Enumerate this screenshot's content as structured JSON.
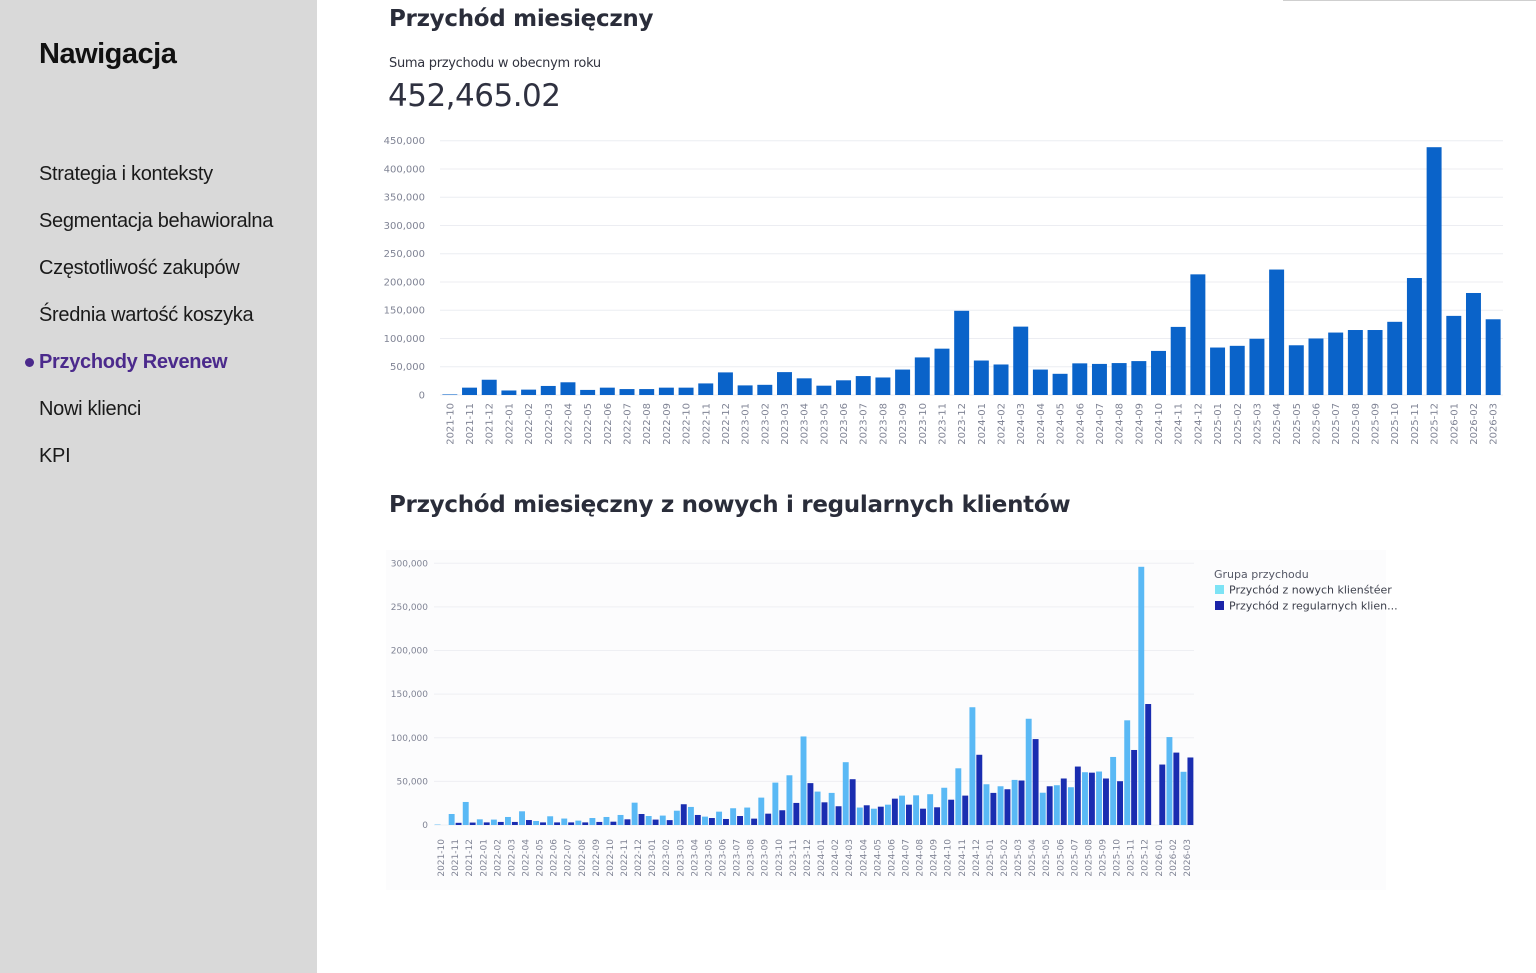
{
  "sidebar": {
    "title": "Nawigacja",
    "items": [
      {
        "label": "Strategia i konteksty",
        "active": false
      },
      {
        "label": "Segmentacja behawioralna",
        "active": false
      },
      {
        "label": "Częstotliwość zakupów",
        "active": false
      },
      {
        "label": "Średnia wartość koszyka",
        "active": false
      },
      {
        "label": "Przychody Revenew",
        "active": true
      },
      {
        "label": "Nowi klienci",
        "active": false
      },
      {
        "label": "KPI",
        "active": false
      }
    ]
  },
  "main": {
    "section1_title": "Przychód miesięczny",
    "metric_label": "Suma przychodu w obecnym roku",
    "metric_value": "452,465.02",
    "section2_title": "Przychód miesięczny z nowych i regularnych klientów"
  },
  "colors": {
    "bar_total": "#0a63c9",
    "new_clients": "#5ab9f5",
    "regular_clients": "#1a2db0",
    "active_nav": "#4b2a8c"
  },
  "chart_data": [
    {
      "type": "bar",
      "title": "Przychód miesięczny",
      "xlabel": "",
      "ylabel": "",
      "ylim": [
        0,
        450000
      ],
      "yticks": [
        0,
        50000,
        100000,
        150000,
        200000,
        250000,
        300000,
        350000,
        400000,
        450000
      ],
      "ytick_labels": [
        "0",
        "50,000",
        "100,000",
        "150,000",
        "200,000",
        "250,000",
        "300,000",
        "350,000",
        "400,000",
        "450,000"
      ],
      "grid": true,
      "categories": [
        "2021-10",
        "2021-11",
        "2021-12",
        "2022-01",
        "2022-02",
        "2022-03",
        "2022-04",
        "2022-05",
        "2022-06",
        "2022-07",
        "2022-08",
        "2022-09",
        "2022-10",
        "2022-11",
        "2022-12",
        "2023-01",
        "2023-02",
        "2023-03",
        "2023-04",
        "2023-05",
        "2023-06",
        "2023-07",
        "2023-08",
        "2023-09",
        "2023-10",
        "2023-11",
        "2023-12",
        "2024-01",
        "2024-02",
        "2024-03",
        "2024-04",
        "2024-05",
        "2024-06",
        "2024-07",
        "2024-08",
        "2024-09",
        "2024-10",
        "2024-11",
        "2024-12",
        "2025-01",
        "2025-02",
        "2025-03",
        "2025-04",
        "2025-05",
        "2025-06",
        "2025-07",
        "2025-08",
        "2025-09",
        "2025-10",
        "2025-11",
        "2025-12",
        "2026-01",
        "2026-02",
        "2026-03"
      ],
      "values": [
        1000,
        13000,
        27000,
        8000,
        9500,
        16000,
        22500,
        9000,
        13000,
        10500,
        10500,
        13000,
        13000,
        20500,
        40000,
        17000,
        18000,
        40500,
        29500,
        16500,
        26000,
        33500,
        31000,
        45000,
        66500,
        82000,
        149000,
        61000,
        54000,
        121000,
        45000,
        37500,
        56000,
        55000,
        56500,
        60000,
        78000,
        120500,
        213500,
        84000,
        87000,
        99500,
        222000,
        88000,
        100000,
        110500,
        115000,
        115000,
        129500,
        207000,
        438500,
        140000,
        180500,
        134000
      ]
    },
    {
      "type": "bar",
      "title": "Przychód miesięczny z nowych i regularnych klientów",
      "xlabel": "",
      "ylabel": "",
      "ylim": [
        0,
        300000
      ],
      "yticks": [
        0,
        50000,
        100000,
        150000,
        200000,
        250000,
        300000
      ],
      "ytick_labels": [
        "0",
        "50,000",
        "100,000",
        "150,000",
        "200,000",
        "250,000",
        "300,000"
      ],
      "grid": true,
      "legend": {
        "title": "Grupa przychodu",
        "position": "right",
        "entries": [
          "Przychód z nowych klienśtéer",
          "Przychód z regularnych klien..."
        ]
      },
      "categories": [
        "2021-10",
        "2021-11",
        "2021-12",
        "2022-01",
        "2022-02",
        "2022-03",
        "2022-04",
        "2022-05",
        "2022-06",
        "2022-07",
        "2022-08",
        "2022-09",
        "2022-10",
        "2022-11",
        "2022-12",
        "2023-01",
        "2023-02",
        "2023-03",
        "2023-04",
        "2023-05",
        "2023-06",
        "2023-07",
        "2023-08",
        "2023-09",
        "2023-10",
        "2023-11",
        "2023-12",
        "2024-01",
        "2024-02",
        "2024-03",
        "2024-04",
        "2024-05",
        "2024-06",
        "2024-07",
        "2024-08",
        "2024-09",
        "2024-10",
        "2024-11",
        "2024-12",
        "2025-01",
        "2025-02",
        "2025-03",
        "2025-04",
        "2025-05",
        "2025-06",
        "2025-07",
        "2025-08",
        "2025-09",
        "2025-10",
        "2025-11",
        "2025-12",
        "2026-01",
        "2026-02",
        "2026-03"
      ],
      "series": [
        {
          "name": "Przychód z nowych klienśtéer",
          "values": [
            500,
            12600,
            26400,
            6500,
            6200,
            9200,
            15700,
            4600,
            10000,
            7400,
            5000,
            8000,
            9200,
            11500,
            25600,
            10300,
            10800,
            16400,
            20700,
            9600,
            15300,
            19200,
            20000,
            31400,
            48600,
            57000,
            101500,
            38300,
            36800,
            72000,
            20000,
            18700,
            23300,
            33700,
            34000,
            35300,
            42700,
            65000,
            135000,
            46700,
            44400,
            51700,
            121800,
            37000,
            45600,
            43300,
            60500,
            61300,
            78000,
            120000,
            296000,
            0,
            100800,
            61000
          ]
        },
        {
          "name": "Przychód z regularnych klien...",
          "values": [
            0,
            2500,
            2800,
            3000,
            3500,
            3500,
            5700,
            3000,
            3000,
            3000,
            3000,
            3500,
            3800,
            6500,
            12600,
            6200,
            5600,
            23800,
            11500,
            8000,
            6900,
            10300,
            7300,
            13000,
            16900,
            25300,
            48000,
            26000,
            21500,
            52500,
            22600,
            21000,
            30200,
            23300,
            18700,
            20300,
            29000,
            33700,
            80500,
            36800,
            41000,
            51000,
            98500,
            44400,
            53300,
            67000,
            60000,
            53300,
            50200,
            86000,
            138700,
            69300,
            83000,
            77400
          ]
        }
      ]
    }
  ]
}
